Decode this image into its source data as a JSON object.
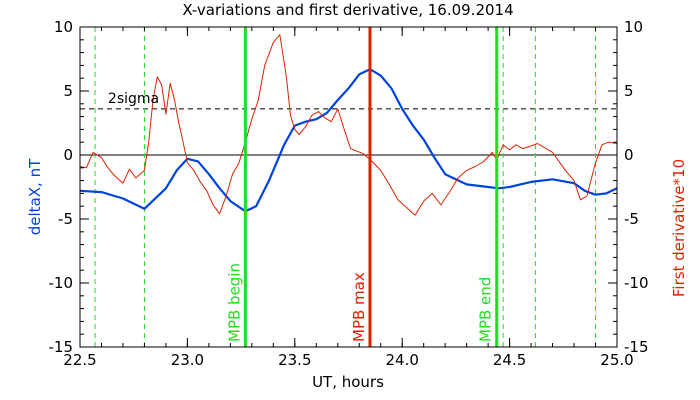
{
  "chart_data": {
    "type": "line",
    "title": "X-variations and first derivative, 16.09.2014",
    "xlabel": "UT, hours",
    "ylabel_left": "deltaX, nT",
    "ylabel_right": "First derivative*10",
    "xlim": [
      22.5,
      25.0
    ],
    "ylim": [
      -15,
      10
    ],
    "xticks": [
      "22.5",
      "23.0",
      "23.5",
      "24.0",
      "24.5",
      "25.0"
    ],
    "yticks": [
      "10",
      "5",
      "0",
      "-5",
      "-10",
      "-15"
    ],
    "yticks_right": [
      "10",
      "5",
      "0",
      "-5",
      "-10",
      "-15"
    ],
    "colors": {
      "deltaX": "#0044dd",
      "derivative": "#dd2200",
      "begin_end": "#22dd22",
      "max": "#dd2200",
      "dashed_green": "#22dd22",
      "threshold": "#000000"
    },
    "threshold": {
      "label": "2sigma",
      "value": 3.6
    },
    "zero_line": 0,
    "markers": [
      {
        "label": "MPB begin",
        "x": 23.27,
        "role": "begin"
      },
      {
        "label": "MPB max",
        "x": 23.85,
        "role": "max"
      },
      {
        "label": "MPB end",
        "x": 24.44,
        "role": "end"
      }
    ],
    "dashed_lines": [
      22.57,
      22.8,
      24.47,
      24.62,
      24.9
    ],
    "series": [
      {
        "name": "deltaX",
        "x": [
          22.5,
          22.6,
          22.7,
          22.8,
          22.9,
          22.95,
          23.0,
          23.05,
          23.1,
          23.15,
          23.2,
          23.27,
          23.32,
          23.38,
          23.45,
          23.5,
          23.55,
          23.6,
          23.65,
          23.7,
          23.75,
          23.8,
          23.85,
          23.9,
          23.95,
          24.0,
          24.05,
          24.1,
          24.15,
          24.2,
          24.3,
          24.4,
          24.45,
          24.5,
          24.55,
          24.6,
          24.7,
          24.8,
          24.85,
          24.9,
          24.95,
          25.0
        ],
        "y": [
          -2.8,
          -2.9,
          -3.4,
          -4.2,
          -2.6,
          -1.2,
          -0.3,
          -0.5,
          -1.5,
          -2.6,
          -3.6,
          -4.4,
          -4.0,
          -2.0,
          0.8,
          2.3,
          2.6,
          2.8,
          3.3,
          4.3,
          5.2,
          6.3,
          6.7,
          6.2,
          5.2,
          3.6,
          2.3,
          1.2,
          -0.2,
          -1.5,
          -2.3,
          -2.5,
          -2.6,
          -2.5,
          -2.3,
          -2.1,
          -1.9,
          -2.2,
          -2.8,
          -3.1,
          -3.0,
          -2.6
        ]
      },
      {
        "name": "First derivative*10",
        "x": [
          22.5,
          22.53,
          22.56,
          22.6,
          22.63,
          22.66,
          22.7,
          22.73,
          22.76,
          22.8,
          22.82,
          22.84,
          22.86,
          22.88,
          22.9,
          22.92,
          22.94,
          22.96,
          22.98,
          23.0,
          23.03,
          23.06,
          23.09,
          23.12,
          23.15,
          23.18,
          23.21,
          23.24,
          23.27,
          23.3,
          23.33,
          23.36,
          23.4,
          23.43,
          23.46,
          23.48,
          23.5,
          23.52,
          23.55,
          23.58,
          23.61,
          23.64,
          23.67,
          23.7,
          23.73,
          23.76,
          23.79,
          23.82,
          23.84,
          23.86,
          23.9,
          23.94,
          23.98,
          24.02,
          24.06,
          24.1,
          24.14,
          24.18,
          24.22,
          24.26,
          24.3,
          24.34,
          24.38,
          24.42,
          24.44,
          24.47,
          24.5,
          24.53,
          24.56,
          24.6,
          24.63,
          24.66,
          24.7,
          24.73,
          24.76,
          24.8,
          24.83,
          24.86,
          24.9,
          24.93,
          24.96,
          25.0
        ],
        "y": [
          -0.9,
          -1.0,
          0.2,
          -0.2,
          -1.0,
          -1.6,
          -2.2,
          -1.1,
          -1.8,
          -1.2,
          1.0,
          4.3,
          6.1,
          5.5,
          3.2,
          5.6,
          4.3,
          2.5,
          1.0,
          -0.6,
          -1.2,
          -2.1,
          -2.8,
          -3.9,
          -4.6,
          -3.2,
          -1.5,
          -0.6,
          1.0,
          2.8,
          4.3,
          7.0,
          8.8,
          9.4,
          6.2,
          3.1,
          2.0,
          1.6,
          2.2,
          3.1,
          3.4,
          2.9,
          2.6,
          3.6,
          2.0,
          0.5,
          0.3,
          0.1,
          -0.2,
          -0.5,
          -1.2,
          -2.3,
          -3.5,
          -4.1,
          -4.7,
          -3.6,
          -3.0,
          -3.9,
          -2.9,
          -1.8,
          -1.2,
          -0.9,
          -0.5,
          0.2,
          -0.4,
          0.8,
          0.4,
          0.8,
          0.5,
          0.7,
          0.9,
          0.6,
          0.2,
          -0.5,
          -1.2,
          -2.0,
          -3.5,
          -3.2,
          -0.6,
          0.8,
          1.0,
          0.9
        ]
      }
    ]
  }
}
